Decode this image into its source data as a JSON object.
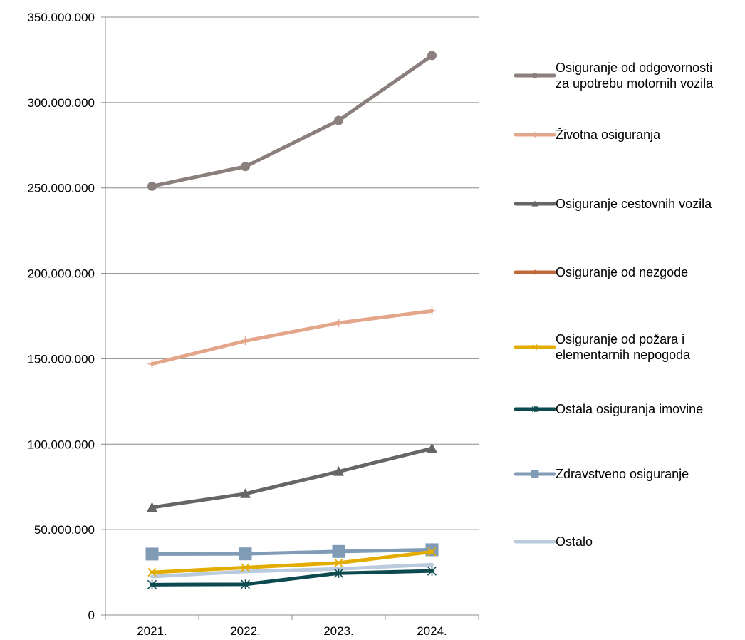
{
  "chart_data": {
    "type": "line",
    "categories": [
      "2021.",
      "2022.",
      "2023.",
      "2024."
    ],
    "ylim": [
      0,
      350000000
    ],
    "yticks": [
      0,
      50000000,
      100000000,
      150000000,
      200000000,
      250000000,
      300000000,
      350000000
    ],
    "ytick_labels": [
      "0",
      "50.000.000",
      "100.000.000",
      "150.000.000",
      "200.000.000",
      "250.000.000",
      "300.000.000",
      "350.000.000"
    ],
    "grid": "horizontal",
    "legend_position": "right",
    "series": [
      {
        "name": "Osiguranje od odgovornosti za upotrebu motornih vozila",
        "legend_lines": [
          "Osiguranje od odgovornosti",
          "za upotrebu motornih vozila"
        ],
        "color": "#8a7f7c",
        "marker": "circle",
        "values": [
          251000000,
          262500000,
          289500000,
          327500000
        ]
      },
      {
        "name": "Životna osiguranja",
        "legend_lines": [
          "Životna osiguranja"
        ],
        "color": "#e4a68a",
        "marker": "plus",
        "values": [
          147000000,
          160500000,
          171000000,
          178000000
        ]
      },
      {
        "name": "Osiguranje cestovnih vozila",
        "legend_lines": [
          "Osiguranje cestovnih vozila"
        ],
        "color": "#666666",
        "marker": "triangle",
        "values": [
          63000000,
          71000000,
          84000000,
          97500000
        ]
      },
      {
        "name": "Osiguranje od nezgode",
        "legend_lines": [
          "Osiguranje od nezgode"
        ],
        "color": "#c0693a",
        "marker": "diamond",
        "values": [
          null,
          null,
          null,
          null
        ]
      },
      {
        "name": "Osiguranje od požara i elementarnih nepogoda",
        "legend_lines": [
          "Osiguranje od požara i",
          "elementarnih nepogoda"
        ],
        "color": "#e3ac00",
        "marker": "x",
        "values": [
          25000000,
          27800000,
          30500000,
          37000000
        ]
      },
      {
        "name": "Ostala osiguranja imovine",
        "legend_lines": [
          "Ostala osiguranja imovine"
        ],
        "color": "#0d4a50",
        "marker": "star",
        "values": [
          17800000,
          18000000,
          24500000,
          25800000
        ]
      },
      {
        "name": "Zdravstveno osiguranje",
        "legend_lines": [
          "Zdravstveno osiguranje"
        ],
        "color": "#7f9bb5",
        "marker": "square",
        "values": [
          35700000,
          35800000,
          37200000,
          38200000
        ]
      },
      {
        "name": "Ostalo",
        "legend_lines": [
          "Ostalo"
        ],
        "color": "#b9cbdd",
        "marker": "none",
        "values": [
          22500000,
          25500000,
          27000000,
          29500000
        ]
      }
    ]
  }
}
